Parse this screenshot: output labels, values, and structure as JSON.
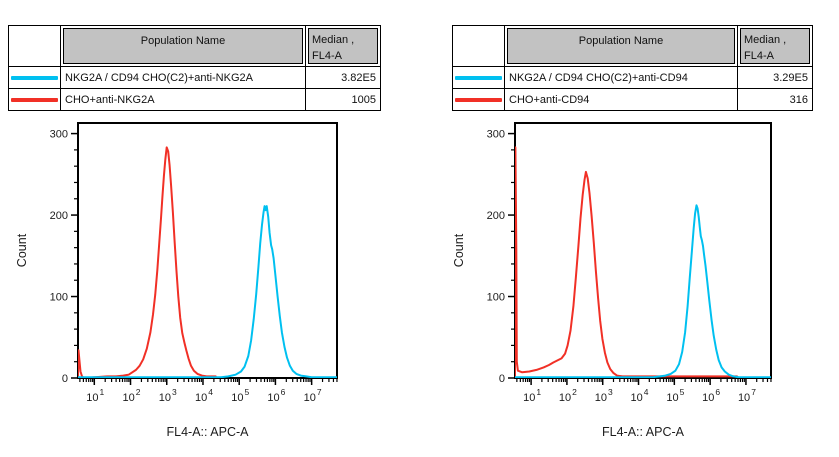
{
  "window": {
    "background": "#FFFFFF"
  },
  "colors": {
    "cyan": "#00C0F0",
    "red": "#F13026",
    "table_header_bg": "#C2C2C2",
    "border": "#000000"
  },
  "panels": [
    {
      "table": {
        "population_header": "Population Name",
        "median_header_line1": "Median ,",
        "median_header_line2": "FL4-A",
        "rows": [
          {
            "swatch_color": "#00C0F0",
            "population": "NKG2A / CD94 CHO(C2)+anti-NKG2A",
            "median": "3.82E5"
          },
          {
            "swatch_color": "#F13026",
            "population": "CHO+anti-NKG2A",
            "median": "1005"
          }
        ]
      }
    },
    {
      "table": {
        "population_header": "Population Name",
        "median_header_line1": "Median ,",
        "median_header_line2": "FL4-A",
        "rows": [
          {
            "swatch_color": "#00C0F0",
            "population": "NKG2A / CD94 CHO(C2)+anti-CD94",
            "median": "3.29E5"
          },
          {
            "swatch_color": "#F13026",
            "population": "CHO+anti-CD94",
            "median": "316"
          }
        ]
      }
    }
  ],
  "chart_data": [
    {
      "type": "line",
      "title": "",
      "xlabel": "FL4-A:: APC-A",
      "ylabel": "Count",
      "x_scale": "log",
      "x_tick_base": "10",
      "x_ticks_log": [
        1,
        2,
        3,
        4,
        5,
        6,
        7
      ],
      "xlim_log": [
        0.55,
        7.7
      ],
      "y_ticks": [
        0,
        100,
        200,
        300
      ],
      "y_minor_step": 20,
      "ylim": [
        0,
        313
      ],
      "grid": false,
      "legend_position": "table-above",
      "series": [
        {
          "name": "CHO+anti-NKG2A",
          "color": "#F13026",
          "median_fl4a": 1005,
          "points": [
            [
              0.55,
              0
            ],
            [
              0.565,
              34
            ],
            [
              0.59,
              22
            ],
            [
              0.62,
              8
            ],
            [
              0.66,
              2
            ],
            [
              0.72,
              0
            ],
            [
              1.35,
              2
            ],
            [
              1.6,
              2
            ],
            [
              1.8,
              3
            ],
            [
              1.95,
              4
            ],
            [
              2.05,
              7
            ],
            [
              2.15,
              10
            ],
            [
              2.25,
              15
            ],
            [
              2.35,
              23
            ],
            [
              2.45,
              36
            ],
            [
              2.55,
              56
            ],
            [
              2.62,
              78
            ],
            [
              2.68,
              102
            ],
            [
              2.74,
              132
            ],
            [
              2.79,
              163
            ],
            [
              2.84,
              196
            ],
            [
              2.88,
              222
            ],
            [
              2.92,
              248
            ],
            [
              2.96,
              268
            ],
            [
              3.0,
              283
            ],
            [
              3.04,
              278
            ],
            [
              3.08,
              261
            ],
            [
              3.12,
              236
            ],
            [
              3.17,
              203
            ],
            [
              3.22,
              166
            ],
            [
              3.27,
              131
            ],
            [
              3.32,
              100
            ],
            [
              3.37,
              74
            ],
            [
              3.43,
              55
            ],
            [
              3.49,
              43
            ],
            [
              3.54,
              34
            ],
            [
              3.6,
              24
            ],
            [
              3.67,
              15
            ],
            [
              3.75,
              9
            ],
            [
              3.85,
              5
            ],
            [
              3.97,
              3
            ],
            [
              4.1,
              2
            ],
            [
              4.35,
              2
            ]
          ]
        },
        {
          "name": "NKG2A / CD94 CHO(C2)+anti-NKG2A",
          "color": "#00C0F0",
          "median_fl4a": 382000,
          "points": [
            [
              0.55,
              1
            ],
            [
              4.3,
              1
            ],
            [
              4.5,
              1
            ],
            [
              4.7,
              2
            ],
            [
              4.9,
              4
            ],
            [
              5.05,
              8
            ],
            [
              5.15,
              14
            ],
            [
              5.25,
              27
            ],
            [
              5.33,
              46
            ],
            [
              5.4,
              72
            ],
            [
              5.47,
              103
            ],
            [
              5.53,
              136
            ],
            [
              5.58,
              165
            ],
            [
              5.63,
              188
            ],
            [
              5.67,
              203
            ],
            [
              5.7,
              211
            ],
            [
              5.73,
              206
            ],
            [
              5.76,
              211
            ],
            [
              5.8,
              198
            ],
            [
              5.84,
              178
            ],
            [
              5.88,
              163
            ],
            [
              5.91,
              158
            ],
            [
              5.95,
              147
            ],
            [
              6.0,
              126
            ],
            [
              6.06,
              100
            ],
            [
              6.12,
              76
            ],
            [
              6.18,
              56
            ],
            [
              6.25,
              38
            ],
            [
              6.32,
              25
            ],
            [
              6.4,
              15
            ],
            [
              6.48,
              9
            ],
            [
              6.58,
              5
            ],
            [
              6.7,
              3
            ],
            [
              6.85,
              2
            ],
            [
              7.0,
              1
            ],
            [
              7.7,
              1
            ]
          ]
        }
      ]
    },
    {
      "type": "line",
      "title": "",
      "xlabel": "FL4-A:: APC-A",
      "ylabel": "Count",
      "x_scale": "log",
      "x_tick_base": "10",
      "x_ticks_log": [
        1,
        2,
        3,
        4,
        5,
        6,
        7
      ],
      "xlim_log": [
        0.55,
        7.7
      ],
      "y_ticks": [
        0,
        100,
        200,
        300
      ],
      "y_minor_step": 20,
      "ylim": [
        0,
        313
      ],
      "grid": false,
      "legend_position": "table-above",
      "series": [
        {
          "name": "CHO+anti-CD94",
          "color": "#F13026",
          "median_fl4a": 316,
          "points": [
            [
              0.55,
              0
            ],
            [
              0.56,
              283
            ],
            [
              0.585,
              160
            ],
            [
              0.6,
              20
            ],
            [
              0.63,
              9
            ],
            [
              0.75,
              7
            ],
            [
              0.95,
              8
            ],
            [
              1.15,
              10
            ],
            [
              1.35,
              13
            ],
            [
              1.5,
              16
            ],
            [
              1.62,
              19
            ],
            [
              1.75,
              22
            ],
            [
              1.85,
              24
            ],
            [
              1.95,
              30
            ],
            [
              2.02,
              40
            ],
            [
              2.1,
              58
            ],
            [
              2.18,
              88
            ],
            [
              2.25,
              124
            ],
            [
              2.32,
              162
            ],
            [
              2.38,
              196
            ],
            [
              2.44,
              225
            ],
            [
              2.49,
              243
            ],
            [
              2.53,
              253
            ],
            [
              2.58,
              245
            ],
            [
              2.63,
              227
            ],
            [
              2.69,
              199
            ],
            [
              2.75,
              166
            ],
            [
              2.81,
              131
            ],
            [
              2.87,
              98
            ],
            [
              2.93,
              70
            ],
            [
              2.99,
              48
            ],
            [
              3.06,
              31
            ],
            [
              3.13,
              19
            ],
            [
              3.21,
              11
            ],
            [
              3.3,
              6
            ],
            [
              3.4,
              3
            ],
            [
              3.55,
              2
            ],
            [
              6.75,
              2
            ]
          ]
        },
        {
          "name": "NKG2A / CD94 CHO(C2)+anti-CD94",
          "color": "#00C0F0",
          "median_fl4a": 329000,
          "points": [
            [
              0.55,
              1
            ],
            [
              4.4,
              1
            ],
            [
              4.6,
              2
            ],
            [
              4.75,
              3
            ],
            [
              4.9,
              5
            ],
            [
              5.03,
              9
            ],
            [
              5.13,
              17
            ],
            [
              5.22,
              32
            ],
            [
              5.3,
              56
            ],
            [
              5.37,
              88
            ],
            [
              5.43,
              122
            ],
            [
              5.49,
              156
            ],
            [
              5.54,
              184
            ],
            [
              5.58,
              202
            ],
            [
              5.62,
              212
            ],
            [
              5.65,
              208
            ],
            [
              5.68,
              198
            ],
            [
              5.71,
              186
            ],
            [
              5.74,
              174
            ],
            [
              5.77,
              169
            ],
            [
              5.8,
              162
            ],
            [
              5.83,
              152
            ],
            [
              5.87,
              138
            ],
            [
              5.92,
              118
            ],
            [
              5.98,
              94
            ],
            [
              6.04,
              71
            ],
            [
              6.1,
              52
            ],
            [
              6.17,
              35
            ],
            [
              6.24,
              22
            ],
            [
              6.32,
              13
            ],
            [
              6.41,
              8
            ],
            [
              6.52,
              4
            ],
            [
              6.65,
              2
            ],
            [
              6.8,
              1
            ],
            [
              7.7,
              1
            ]
          ]
        }
      ]
    }
  ]
}
